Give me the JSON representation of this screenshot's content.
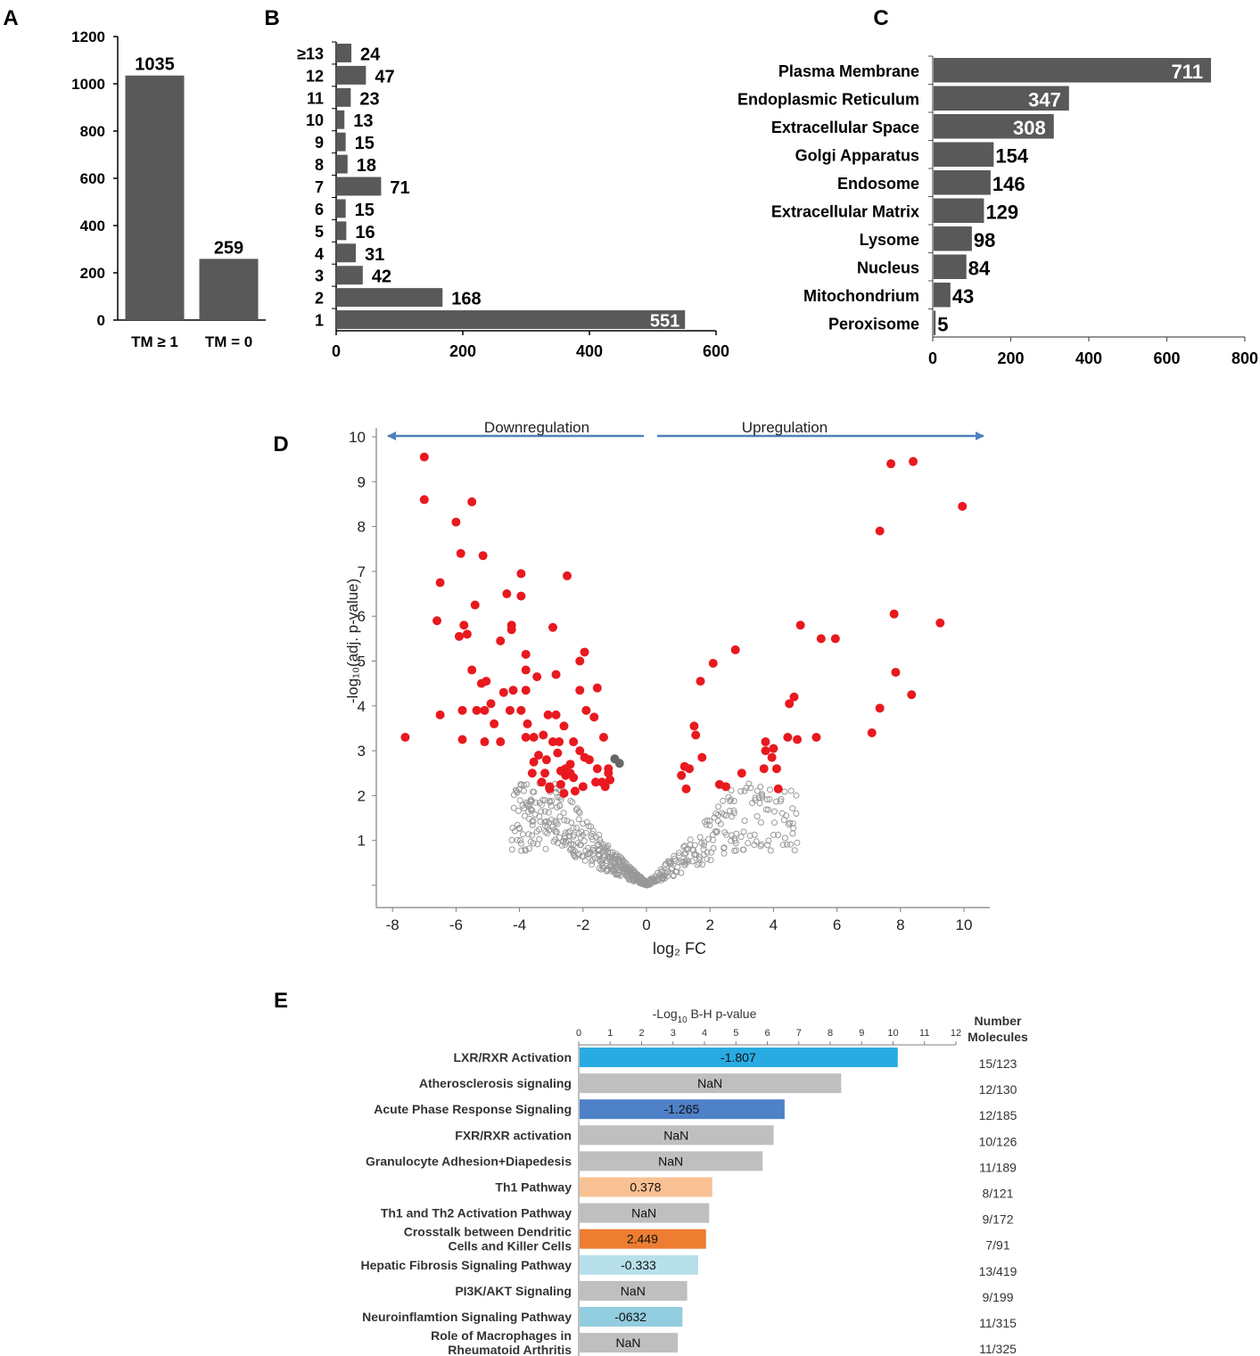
{
  "panel_letters": [
    "A",
    "B",
    "C",
    "D",
    "E"
  ],
  "colors": {
    "bar": "#595959",
    "sig_point": "#e8191f",
    "ns_point": "#999999",
    "arrow": "#4f81bd",
    "axis": "#000000",
    "grey_bar": "#bfbfbf"
  },
  "chart_data": [
    {
      "panel": "A",
      "type": "bar",
      "categories": [
        "TM ≥ 1",
        "TM = 0"
      ],
      "values": [
        1035,
        259
      ],
      "ylim": [
        0,
        1200
      ],
      "yticks": [
        0,
        200,
        400,
        600,
        800,
        1000,
        1200
      ],
      "title": "",
      "xlabel": "",
      "ylabel": ""
    },
    {
      "panel": "B",
      "type": "bar",
      "orientation": "horizontal",
      "categories": [
        "1",
        "2",
        "3",
        "4",
        "5",
        "6",
        "7",
        "8",
        "9",
        "10",
        "11",
        "12",
        "≥13"
      ],
      "values": [
        551,
        168,
        42,
        31,
        16,
        15,
        71,
        18,
        15,
        13,
        23,
        47,
        24
      ],
      "xlim": [
        0,
        600
      ],
      "xticks": [
        0,
        200,
        400,
        600
      ],
      "title": "",
      "xlabel": "",
      "ylabel": ""
    },
    {
      "panel": "C",
      "type": "bar",
      "orientation": "horizontal",
      "categories": [
        "Plasma Membrane",
        "Endoplasmic Reticulum",
        "Extracellular Space",
        "Golgi Apparatus",
        "Endosome",
        "Extracellular Matrix",
        "Lysome",
        "Nucleus",
        "Mitochondrium",
        "Peroxisome"
      ],
      "values": [
        711,
        347,
        308,
        154,
        146,
        129,
        98,
        84,
        43,
        5
      ],
      "xlim": [
        0,
        800
      ],
      "xticks": [
        0,
        200,
        400,
        600,
        800
      ],
      "title": "",
      "xlabel": "",
      "ylabel": ""
    },
    {
      "panel": "D",
      "type": "scatter",
      "xlabel": "log₂ FC",
      "ylabel": "-log₁₀(adj. p-value)",
      "xlim": [
        -8.4,
        10.8
      ],
      "ylim": [
        -0.5,
        10
      ],
      "xticks": [
        -8,
        -6,
        -4,
        -2,
        0,
        2,
        4,
        6,
        8,
        10
      ],
      "yticks": [
        1,
        2,
        3,
        4,
        5,
        6,
        7,
        8,
        9,
        10
      ],
      "annotations": [
        "Downregulation",
        "Upregulation"
      ],
      "series": [
        {
          "name": "significant",
          "points": [
            [
              -7,
              9.55
            ],
            [
              -7,
              8.6
            ],
            [
              -7.6,
              3.3
            ],
            [
              -6.6,
              5.9
            ],
            [
              -6.5,
              6.75
            ],
            [
              -6.5,
              3.8
            ],
            [
              -6,
              8.1
            ],
            [
              -5.5,
              8.55
            ],
            [
              -5.85,
              7.4
            ],
            [
              -5.15,
              7.35
            ],
            [
              -5.4,
              6.25
            ],
            [
              -5.75,
              5.8
            ],
            [
              -5.9,
              5.55
            ],
            [
              -5.65,
              5.6
            ],
            [
              -5.5,
              4.8
            ],
            [
              -5.2,
              4.5
            ],
            [
              -5.05,
              4.55
            ],
            [
              -4.9,
              4.05
            ],
            [
              -5.1,
              3.9
            ],
            [
              -5.35,
              3.9
            ],
            [
              -5.8,
              3.9
            ],
            [
              -4.8,
              3.6
            ],
            [
              -5.8,
              3.25
            ],
            [
              -5.1,
              3.2
            ],
            [
              -4.6,
              3.2
            ],
            [
              -4.4,
              6.5
            ],
            [
              -4.25,
              5.8
            ],
            [
              -4.25,
              5.7
            ],
            [
              -3.95,
              6.95
            ],
            [
              -3.95,
              6.45
            ],
            [
              -4.6,
              5.45
            ],
            [
              -3.8,
              5.15
            ],
            [
              -3.8,
              4.8
            ],
            [
              -3.45,
              4.65
            ],
            [
              -3.8,
              4.35
            ],
            [
              -4.2,
              4.35
            ],
            [
              -4.5,
              4.3
            ],
            [
              -4.3,
              3.9
            ],
            [
              -3.95,
              3.9
            ],
            [
              -3.75,
              3.6
            ],
            [
              -3.8,
              3.3
            ],
            [
              -3.55,
              3.3
            ],
            [
              -3.4,
              2.9
            ],
            [
              -3.55,
              2.75
            ],
            [
              -3.15,
              2.8
            ],
            [
              -3.6,
              2.5
            ],
            [
              -3.3,
              2.3
            ],
            [
              -3.05,
              2.2
            ],
            [
              -2.95,
              5.75
            ],
            [
              -2.85,
              4.7
            ],
            [
              -3.1,
              3.8
            ],
            [
              -2.85,
              3.8
            ],
            [
              -2.6,
              3.55
            ],
            [
              -2.75,
              3.2
            ],
            [
              -2.8,
              2.95
            ],
            [
              -3.25,
              3.35
            ],
            [
              -2.95,
              3.2
            ],
            [
              -2.7,
              2.55
            ],
            [
              -2.55,
              2.45
            ],
            [
              -2.4,
              2.5
            ],
            [
              -2.3,
              2.4
            ],
            [
              -2.7,
              2.25
            ],
            [
              -2.5,
              6.9
            ],
            [
              -2.3,
              3.2
            ],
            [
              -2.1,
              3.0
            ],
            [
              -1.95,
              2.85
            ],
            [
              -1.8,
              2.8
            ],
            [
              -1.55,
              2.6
            ],
            [
              -1.95,
              5.2
            ],
            [
              -2.1,
              5.0
            ],
            [
              -2.1,
              4.35
            ],
            [
              -1.9,
              3.9
            ],
            [
              -1.65,
              3.75
            ],
            [
              -1.55,
              4.4
            ],
            [
              -1.35,
              3.3
            ],
            [
              -1.2,
              2.6
            ],
            [
              -1.2,
              2.5
            ],
            [
              -1.15,
              2.35
            ],
            [
              -1.4,
              2.3
            ],
            [
              -1.3,
              2.2
            ],
            [
              -1.6,
              2.3
            ],
            [
              -2.0,
              2.2
            ],
            [
              -2.25,
              2.1
            ],
            [
              -2.6,
              2.05
            ],
            [
              -3.05,
              2.15
            ],
            [
              -2.4,
              2.7
            ],
            [
              -2.55,
              2.6
            ],
            [
              -3.2,
              2.5
            ],
            [
              1.2,
              2.65
            ],
            [
              1.1,
              2.45
            ],
            [
              1.35,
              2.6
            ],
            [
              1.25,
              2.15
            ],
            [
              1.5,
              3.55
            ],
            [
              1.55,
              3.35
            ],
            [
              1.7,
              4.55
            ],
            [
              1.75,
              2.85
            ],
            [
              2.1,
              4.95
            ],
            [
              2.3,
              2.25
            ],
            [
              2.5,
              2.2
            ],
            [
              2.8,
              5.25
            ],
            [
              3.0,
              2.5
            ],
            [
              3.7,
              2.6
            ],
            [
              3.75,
              3.2
            ],
            [
              3.75,
              3.0
            ],
            [
              3.95,
              2.85
            ],
            [
              4.0,
              3.05
            ],
            [
              4.1,
              2.6
            ],
            [
              4.15,
              2.15
            ],
            [
              4.45,
              3.3
            ],
            [
              4.5,
              4.05
            ],
            [
              4.65,
              4.2
            ],
            [
              4.75,
              3.25
            ],
            [
              4.85,
              5.8
            ],
            [
              5.35,
              3.3
            ],
            [
              5.5,
              5.5
            ],
            [
              5.95,
              5.5
            ],
            [
              7.1,
              3.4
            ],
            [
              7.35,
              7.9
            ],
            [
              7.35,
              3.95
            ],
            [
              7.7,
              9.4
            ],
            [
              7.8,
              6.05
            ],
            [
              7.85,
              4.75
            ],
            [
              8.4,
              9.45
            ],
            [
              8.35,
              4.25
            ],
            [
              9.25,
              5.85
            ],
            [
              9.95,
              8.45
            ]
          ]
        },
        {
          "name": "highlighted",
          "points": [
            [
              -1.0,
              2.82
            ],
            [
              -0.85,
              2.72
            ]
          ]
        }
      ]
    },
    {
      "panel": "E",
      "type": "bar",
      "orientation": "horizontal",
      "xlabel": "-Log₁₀ B-H p-value",
      "xlim": [
        0,
        12
      ],
      "xticks": [
        0,
        1,
        2,
        3,
        4,
        5,
        6,
        7,
        8,
        9,
        10,
        11,
        12
      ],
      "number_header": "Number Molecules",
      "pathways": [
        {
          "name": "LXR/RXR Activation",
          "value": 10.15,
          "label": "-1.807",
          "molecules": "15/123",
          "color": "#29abe2"
        },
        {
          "name": "Atherosclerosis signaling",
          "value": 8.35,
          "label": "NaN",
          "molecules": "12/130",
          "color": "#bfbfbf"
        },
        {
          "name": "Acute Phase Response Signaling",
          "value": 6.55,
          "label": "-1.265",
          "molecules": "12/185",
          "color": "#4f81c8"
        },
        {
          "name": "FXR/RXR activation",
          "value": 6.2,
          "label": "NaN",
          "molecules": "10/126",
          "color": "#bfbfbf"
        },
        {
          "name": "Granulocyte Adhesion+Diapedesis",
          "value": 5.85,
          "label": "NaN",
          "molecules": "11/189",
          "color": "#bfbfbf"
        },
        {
          "name": "Th1 Pathway",
          "value": 4.25,
          "label": "0.378",
          "molecules": "8/121",
          "color": "#f9c193"
        },
        {
          "name": "Th1 and Th2 Activation Pathway",
          "value": 4.15,
          "label": "NaN",
          "molecules": "9/172",
          "color": "#bfbfbf"
        },
        {
          "name": "Crosstalk between Dendritic Cells and Killer Cells",
          "value": 4.05,
          "label": "2.449",
          "molecules": "7/91",
          "color": "#ed7d31"
        },
        {
          "name": "Hepatic Fibrosis Signaling Pathway",
          "value": 3.8,
          "label": "-0.333",
          "molecules": "13/419",
          "color": "#b7e0ea"
        },
        {
          "name": "PI3K/AKT Signaling",
          "value": 3.45,
          "label": "NaN",
          "molecules": "9/199",
          "color": "#bfbfbf"
        },
        {
          "name": "Neuroinflamtion Signaling Pathway",
          "value": 3.3,
          "label": "-0632",
          "molecules": "11/315",
          "color": "#92cddf"
        },
        {
          "name": "Role of Macrophages in Rheumatoid Arthritis",
          "value": 3.15,
          "label": "NaN",
          "molecules": "11/325",
          "color": "#bfbfbf"
        }
      ]
    }
  ]
}
